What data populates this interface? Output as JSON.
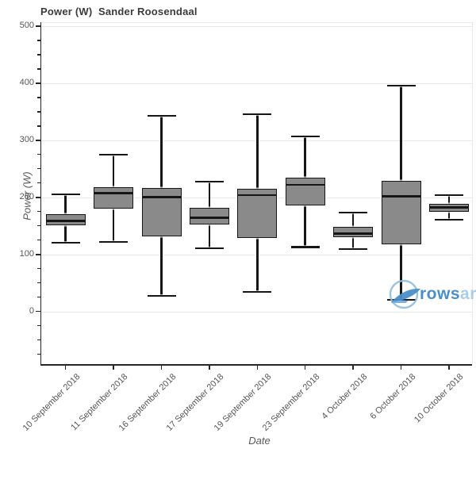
{
  "title": "Power (W)  Sander Roosendaal",
  "watermark": {
    "icon": "rowsar-logo",
    "text_primary": "rows",
    "text_secondary": "ar",
    "color_primary": "#4a8fc8",
    "color_secondary": "#a9cdea",
    "circle_color": "#8ebede"
  },
  "chart_data": {
    "type": "box",
    "title": "Power (W)  Sander Roosendaal",
    "xlabel": "Date",
    "ylabel": "Power (W)",
    "ylim": [
      -92,
      506.5
    ],
    "y_ticks": [
      0,
      100,
      200,
      300,
      400,
      500
    ],
    "y_minor_step": 25,
    "grid": "horizontal-major",
    "legend": "none",
    "categories": [
      "10 September 2018",
      "11 September 2018",
      "16 September 2018",
      "17 September 2018",
      "19 September 2018",
      "23 September 2018",
      "4 October 2018",
      "6 October 2018",
      "10 October 2018"
    ],
    "boxes": [
      {
        "min": 121,
        "q1": 151,
        "median": 159,
        "q3": 171,
        "max": 205
      },
      {
        "min": 122,
        "q1": 181,
        "median": 208,
        "q3": 218,
        "max": 275
      },
      {
        "min": 27,
        "q1": 132,
        "median": 201,
        "q3": 216,
        "max": 343
      },
      {
        "min": 111,
        "q1": 152,
        "median": 164,
        "q3": 182,
        "max": 228
      },
      {
        "min": 35,
        "q1": 129,
        "median": 204,
        "q3": 215,
        "max": 346
      },
      {
        "min": 113,
        "q1": 186,
        "median": 222,
        "q3": 235,
        "max": 307
      },
      {
        "min": 110,
        "q1": 131,
        "median": 137,
        "q3": 148,
        "max": 173
      },
      {
        "min": 20,
        "q1": 118,
        "median": 202,
        "q3": 229,
        "max": 396
      },
      {
        "min": 161,
        "q1": 175,
        "median": 182,
        "q3": 189,
        "max": 204
      }
    ],
    "colors": {
      "box_fill": "#8a8a8a",
      "box_border": "#161616",
      "gridline": "#e9e9e9",
      "axis_line": "#262626",
      "tick_label": "#565656",
      "title": "#3b3b3b"
    }
  }
}
